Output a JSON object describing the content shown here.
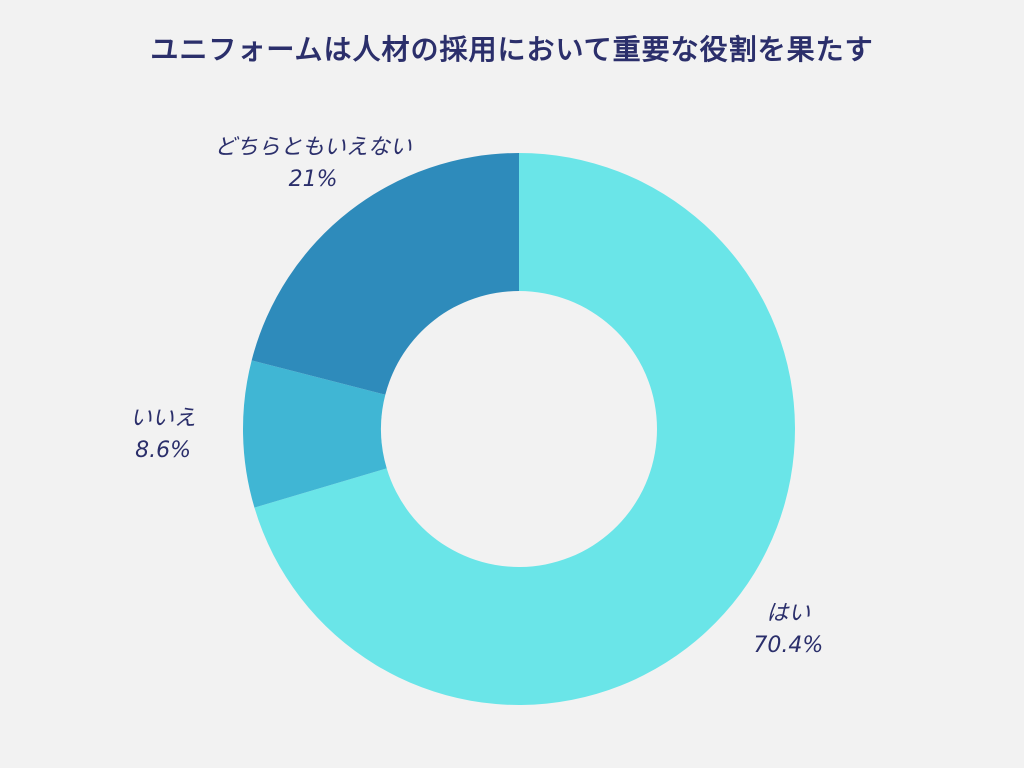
{
  "chart_data": {
    "type": "pie",
    "title": "ユニフォームは人材の採用において重要な役割を果たす",
    "donut": true,
    "legend": "none (labels outside slices)",
    "slices": [
      {
        "label": "はい",
        "value": 70.4,
        "value_label": "70.4%",
        "color": "#6ae5e8"
      },
      {
        "label": "いいえ",
        "value": 8.6,
        "value_label": "8.6%",
        "color": "#40b6d4"
      },
      {
        "label": "どちらともいえない",
        "value": 21,
        "value_label": "21%",
        "color": "#2e8bbb"
      }
    ]
  }
}
